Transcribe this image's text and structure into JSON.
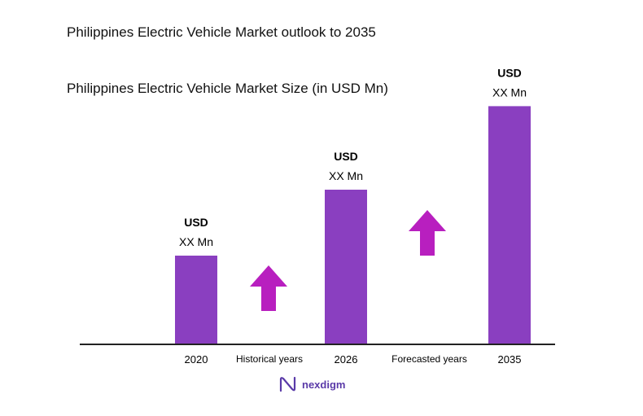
{
  "header": {
    "title": "Philippines Electric Vehicle Market outlook to 2035",
    "subtitle": "Philippines Electric Vehicle Market Size (in USD Mn)"
  },
  "chart_data": {
    "type": "bar",
    "title": "Philippines Electric Vehicle Market Size (in USD Mn)",
    "categories": [
      "2020",
      "2026",
      "2035"
    ],
    "values": [
      1.0,
      1.75,
      2.7
    ],
    "value_labels": [
      {
        "top": "USD",
        "bottom": "XX Mn"
      },
      {
        "top": "USD",
        "bottom": "XX Mn"
      },
      {
        "top": "USD",
        "bottom": "XX Mn"
      }
    ],
    "period_labels": [
      "Historical years",
      "Forecasted years"
    ],
    "bar_color": "#8a3fc0",
    "arrow_color": "#b81fbf",
    "grid": false,
    "note": "Values not printed; relative bar heights estimated"
  },
  "branding": {
    "logo_text": "nexdigm",
    "logo_color": "#5a3aa8"
  }
}
